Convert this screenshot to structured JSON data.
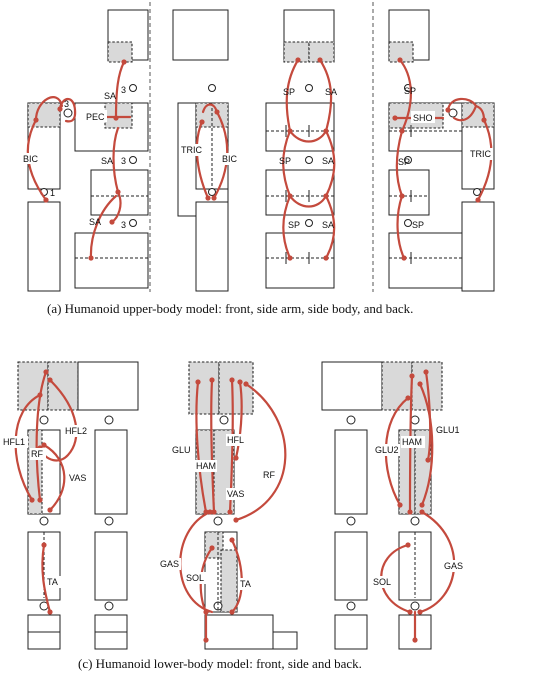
{
  "captions": {
    "upper": "(a)  Humanoid upper-body model: front, side arm, side body, and back.",
    "lower": "(c)  Humanoid lower-body model: front, side and back."
  },
  "upper_labels": {
    "sa_top": "SA",
    "pec": "PEC",
    "num3_a": "3",
    "num3_b": "3",
    "bic": "BIC",
    "num1": "1",
    "sa_mid": "SA",
    "num3_c": "3",
    "sa_low": "SA",
    "num3_d": "3",
    "tric": "TRIC",
    "bic2": "BIC",
    "sp1": "SP",
    "sa1": "SA",
    "sp2": "SP",
    "sa2": "SA",
    "sp3": "SP",
    "sa3": "SA",
    "sp_b1": "SP",
    "sho": "SHO",
    "sp_b2": "SP",
    "tric_b": "TRIC",
    "sp_b3": "SP"
  },
  "lower_labels": {
    "hfl1": "HFL1",
    "hfl2": "HFL2",
    "rf": "RF",
    "vas": "VAS",
    "ta": "TA",
    "glu": "GLU",
    "hfl": "HFL",
    "ham": "HAM",
    "vas2": "VAS",
    "rf2": "RF",
    "gas": "GAS",
    "sol": "SOL",
    "ta2": "TA",
    "glu2": "GLU2",
    "ham2": "HAM",
    "glu1": "GLU1",
    "sol2": "SOL",
    "gas2": "GAS"
  }
}
